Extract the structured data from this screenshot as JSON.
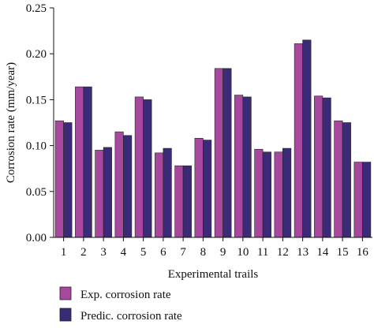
{
  "chart_data": {
    "type": "bar",
    "title": "",
    "xlabel": "Experimental trails",
    "ylabel": "Corrosion rate (mm/year)",
    "ylim": [
      0,
      0.25
    ],
    "yticks": [
      "0.00",
      "0.05",
      "0.10",
      "0.15",
      "0.20",
      "0.25"
    ],
    "ytick_values": [
      0,
      0.05,
      0.1,
      0.15,
      0.2,
      0.25
    ],
    "categories": [
      "1",
      "2",
      "3",
      "4",
      "5",
      "6",
      "7",
      "8",
      "9",
      "10",
      "11",
      "12",
      "13",
      "14",
      "15",
      "16"
    ],
    "series": [
      {
        "name": "Exp. corrosion rate",
        "color": "#a8479e",
        "values": [
          0.127,
          0.164,
          0.095,
          0.115,
          0.153,
          0.092,
          0.078,
          0.108,
          0.184,
          0.155,
          0.096,
          0.093,
          0.211,
          0.154,
          0.127,
          0.082
        ]
      },
      {
        "name": "Predic. corrosion rate",
        "color": "#3a2a78",
        "values": [
          0.125,
          0.164,
          0.098,
          0.111,
          0.15,
          0.097,
          0.078,
          0.106,
          0.184,
          0.153,
          0.093,
          0.097,
          0.215,
          0.152,
          0.125,
          0.082
        ]
      }
    ],
    "grid": false,
    "legend_position": "bottom-left"
  }
}
